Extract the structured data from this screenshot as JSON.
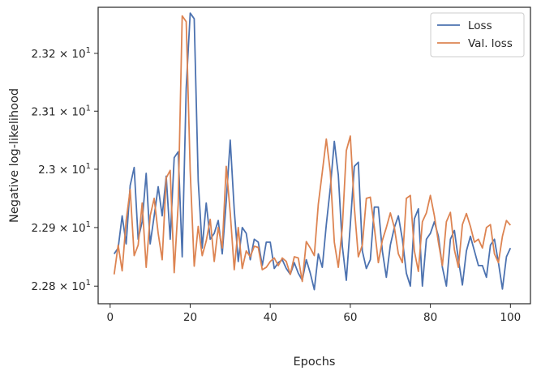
{
  "chart_data": {
    "type": "line",
    "xlabel": "Epochs",
    "ylabel": "Negative log-likelihood",
    "xlim": [
      -3,
      105
    ],
    "ylim": [
      22.77,
      23.28
    ],
    "y_scale": "log",
    "grid": false,
    "legend": "top-right",
    "x_ticks": [
      0,
      20,
      40,
      60,
      80,
      100
    ],
    "y_ticks": [
      {
        "value": 22.8,
        "mantissa": "2.28",
        "exp": "1"
      },
      {
        "value": 22.9,
        "mantissa": "2.29",
        "exp": "1"
      },
      {
        "value": 23.0,
        "mantissa": "2.3",
        "exp": "1"
      },
      {
        "value": 23.1,
        "mantissa": "2.31",
        "exp": "1"
      },
      {
        "value": 23.2,
        "mantissa": "2.32",
        "exp": "1"
      }
    ],
    "x": [
      1,
      2,
      3,
      4,
      5,
      6,
      7,
      8,
      9,
      10,
      11,
      12,
      13,
      14,
      15,
      16,
      17,
      18,
      19,
      20,
      21,
      22,
      23,
      24,
      25,
      26,
      27,
      28,
      29,
      30,
      31,
      32,
      33,
      34,
      35,
      36,
      37,
      38,
      39,
      40,
      41,
      42,
      43,
      44,
      45,
      46,
      47,
      48,
      49,
      50,
      51,
      52,
      53,
      54,
      55,
      56,
      57,
      58,
      59,
      60,
      61,
      62,
      63,
      64,
      65,
      66,
      67,
      68,
      69,
      70,
      71,
      72,
      73,
      74,
      75,
      76,
      77,
      78,
      79,
      80,
      81,
      82,
      83,
      84,
      85,
      86,
      87,
      88,
      89,
      90,
      91,
      92,
      93,
      94,
      95,
      96,
      97,
      98,
      99,
      100
    ],
    "series": [
      {
        "name": "Loss",
        "color": "#4c72b0",
        "values": [
          22.855,
          22.865,
          22.92,
          22.872,
          22.972,
          23.003,
          22.88,
          22.91,
          22.993,
          22.872,
          22.92,
          22.97,
          22.92,
          22.988,
          22.88,
          23.02,
          23.03,
          22.85,
          23.14,
          23.27,
          23.26,
          22.98,
          22.865,
          22.942,
          22.88,
          22.89,
          22.912,
          22.855,
          22.945,
          23.05,
          22.93,
          22.842,
          22.9,
          22.89,
          22.845,
          22.88,
          22.875,
          22.835,
          22.875,
          22.875,
          22.83,
          22.84,
          22.845,
          22.83,
          22.82,
          22.84,
          22.822,
          22.81,
          22.845,
          22.822,
          22.794,
          22.855,
          22.832,
          22.905,
          22.968,
          23.048,
          22.99,
          22.868,
          22.81,
          22.905,
          23.005,
          23.012,
          22.86,
          22.83,
          22.845,
          22.935,
          22.935,
          22.86,
          22.815,
          22.87,
          22.9,
          22.92,
          22.88,
          22.822,
          22.8,
          22.915,
          22.932,
          22.8,
          22.88,
          22.89,
          22.91,
          22.885,
          22.832,
          22.8,
          22.88,
          22.895,
          22.845,
          22.802,
          22.86,
          22.885,
          22.86,
          22.835,
          22.835,
          22.815,
          22.87,
          22.88,
          22.84,
          22.795,
          22.85,
          22.865
        ]
      },
      {
        "name": "Val. loss",
        "color": "#dd8452",
        "values": [
          22.82,
          22.87,
          22.826,
          22.912,
          22.965,
          22.852,
          22.87,
          22.942,
          22.832,
          22.92,
          22.95,
          22.89,
          22.845,
          22.985,
          22.998,
          22.823,
          22.94,
          23.265,
          23.255,
          22.997,
          22.834,
          22.902,
          22.852,
          22.877,
          22.914,
          22.842,
          22.9,
          22.865,
          23.005,
          22.925,
          22.828,
          22.9,
          22.83,
          22.86,
          22.85,
          22.868,
          22.866,
          22.828,
          22.832,
          22.842,
          22.848,
          22.835,
          22.848,
          22.842,
          22.82,
          22.85,
          22.848,
          22.808,
          22.876,
          22.865,
          22.852,
          22.94,
          22.995,
          23.052,
          22.995,
          22.875,
          22.832,
          22.9,
          23.032,
          23.057,
          22.935,
          22.85,
          22.87,
          22.95,
          22.952,
          22.9,
          22.84,
          22.878,
          22.9,
          22.925,
          22.9,
          22.855,
          22.84,
          22.95,
          22.955,
          22.86,
          22.825,
          22.91,
          22.925,
          22.955,
          22.92,
          22.875,
          22.835,
          22.91,
          22.926,
          22.862,
          22.832,
          22.905,
          22.924,
          22.902,
          22.875,
          22.88,
          22.865,
          22.9,
          22.905,
          22.855,
          22.84,
          22.885,
          22.912,
          22.904
        ]
      }
    ]
  }
}
